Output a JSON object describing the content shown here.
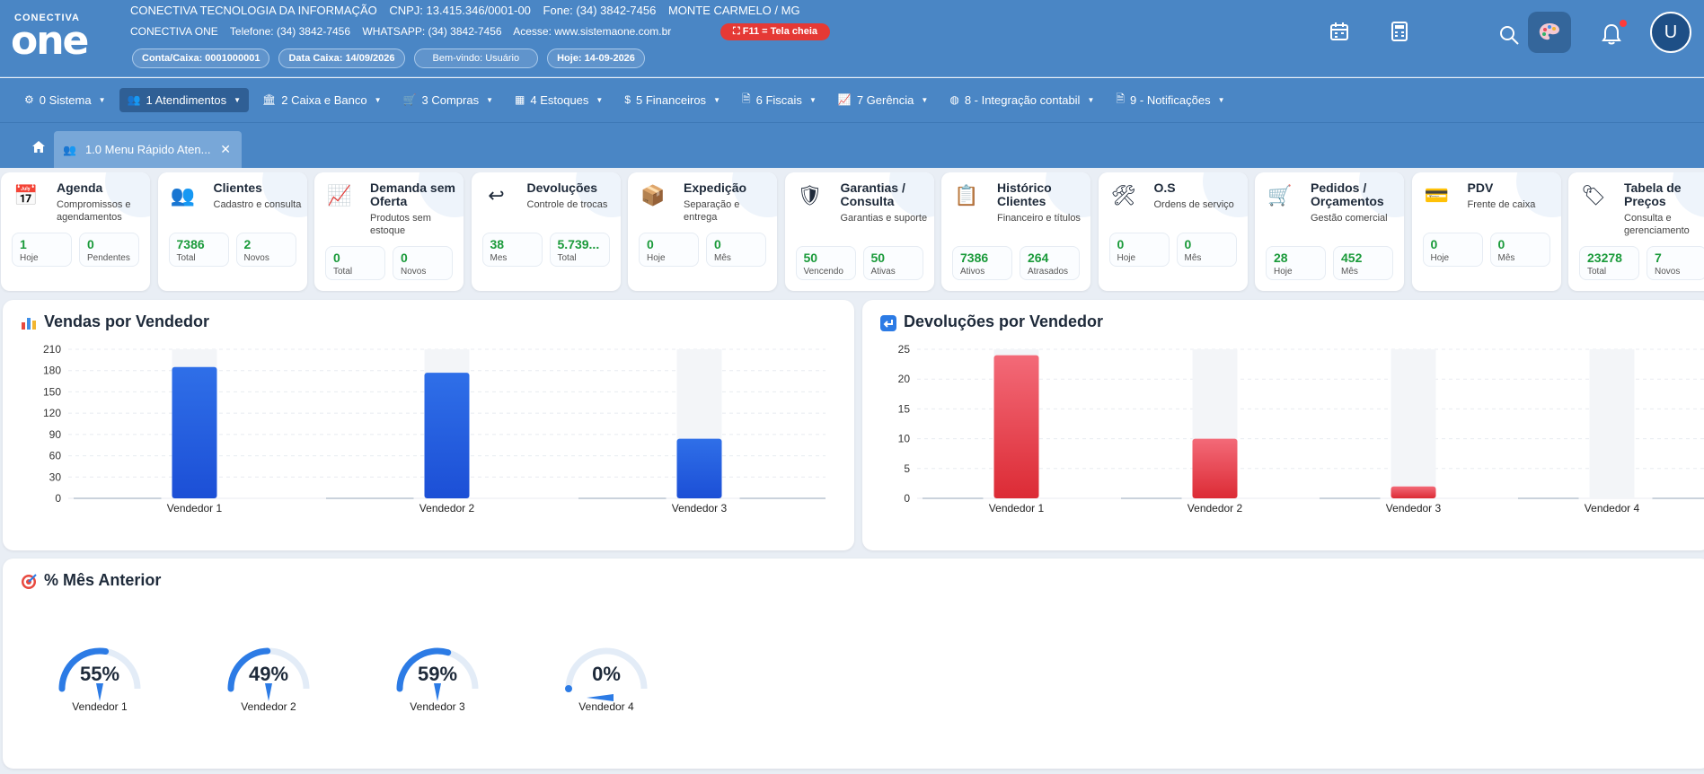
{
  "header": {
    "logo_top": "CONECTIVA",
    "logo_main": "one",
    "company": "CONECTIVA TECNOLOGIA DA INFORMAÇÃO",
    "cnpj": "CNPJ: 13.415.346/0001-00",
    "phone": "Fone: (34) 3842-7456",
    "city": "MONTE CARMELO / MG",
    "product": "CONECTIVA ONE",
    "telefone": "Telefone: (34) 3842-7456",
    "whatsapp": "WHATSAPP: (34) 3842-7456",
    "site": "Acesse: www.sistemaone.com.br",
    "pill_account": "Conta/Caixa: 0001000001",
    "pill_date": "Data Caixa: 14/09/2026",
    "pill_welcome": "Bem-vindo: Usuário",
    "pill_today": "Hoje: 14-09-2026",
    "fullscreen": "⛶ F11 = Tela cheia",
    "avatar_initial": "U",
    "icons": [
      "calendar-icon",
      "calculator-icon",
      "search-icon",
      "palette-icon",
      "bell-icon"
    ]
  },
  "menu": [
    {
      "label": "0 Sistema",
      "icon": "gear-icon",
      "glyph": "⚙"
    },
    {
      "label": "1 Atendimentos",
      "icon": "users-icon",
      "glyph": "👥"
    },
    {
      "label": "2 Caixa e Banco",
      "icon": "bank-icon",
      "glyph": "🏛"
    },
    {
      "label": "3 Compras",
      "icon": "cart-icon",
      "glyph": "🛒"
    },
    {
      "label": "4 Estoques",
      "icon": "table-icon",
      "glyph": "▦"
    },
    {
      "label": "5 Financeiros",
      "icon": "dollar-icon",
      "glyph": "$"
    },
    {
      "label": "6 Fiscais",
      "icon": "file-icon",
      "glyph": "🗎"
    },
    {
      "label": "7 Gerência",
      "icon": "chart-line-icon",
      "glyph": "📈"
    },
    {
      "label": "8 - Integração contabil",
      "icon": "globe-icon",
      "glyph": "◍"
    },
    {
      "label": "9 - Notificações",
      "icon": "file-icon",
      "glyph": "🗎"
    }
  ],
  "tab": {
    "label": "1.0 Menu Rápido Aten...",
    "close": "✕"
  },
  "cards": [
    {
      "title": "Agenda",
      "sub": "Compromissos e agendamentos",
      "icon": "calendar-icon",
      "glyph": "📅",
      "stats": [
        {
          "v": "1",
          "l": "Hoje"
        },
        {
          "v": "0",
          "l": "Pendentes"
        }
      ]
    },
    {
      "title": "Clientes",
      "sub": "Cadastro e consulta",
      "icon": "users-icon",
      "glyph": "👥",
      "stats": [
        {
          "v": "7386",
          "l": "Total"
        },
        {
          "v": "2",
          "l": "Novos"
        }
      ]
    },
    {
      "title": "Demanda sem Oferta",
      "sub": "Produtos sem estoque",
      "icon": "trend-icon",
      "glyph": "📈",
      "stats": [
        {
          "v": "0",
          "l": "Total"
        },
        {
          "v": "0",
          "l": "Novos"
        }
      ]
    },
    {
      "title": "Devoluções",
      "sub": "Controle de trocas",
      "icon": "return-icon",
      "glyph": "↩",
      "stats": [
        {
          "v": "38",
          "l": "Mes"
        },
        {
          "v": "5.739...",
          "l": "Total"
        }
      ]
    },
    {
      "title": "Expedição",
      "sub": "Separação e entrega",
      "icon": "box-icon",
      "glyph": "📦",
      "stats": [
        {
          "v": "0",
          "l": "Hoje"
        },
        {
          "v": "0",
          "l": "Mês"
        }
      ]
    },
    {
      "title": "Garantias / Consulta",
      "sub": "Garantias e suporte",
      "icon": "shield-icon",
      "glyph": "🛡",
      "stats": [
        {
          "v": "50",
          "l": "Vencendo"
        },
        {
          "v": "50",
          "l": "Ativas"
        }
      ]
    },
    {
      "title": "Histórico Clientes",
      "sub": "Financeiro e títulos",
      "icon": "clipboard-icon",
      "glyph": "📋",
      "stats": [
        {
          "v": "7386",
          "l": "Ativos"
        },
        {
          "v": "264",
          "l": "Atrasados"
        }
      ]
    },
    {
      "title": "O.S",
      "sub": "Ordens de serviço",
      "icon": "tools-icon",
      "glyph": "🛠",
      "stats": [
        {
          "v": "0",
          "l": "Hoje"
        },
        {
          "v": "0",
          "l": "Mês"
        }
      ]
    },
    {
      "title": "Pedidos / Orçamentos",
      "sub": "Gestão comercial",
      "icon": "cart-icon",
      "glyph": "🛒",
      "stats": [
        {
          "v": "28",
          "l": "Hoje"
        },
        {
          "v": "452",
          "l": "Mês"
        }
      ]
    },
    {
      "title": "PDV",
      "sub": "Frente de caixa",
      "icon": "card-icon",
      "glyph": "💳",
      "stats": [
        {
          "v": "0",
          "l": "Hoje"
        },
        {
          "v": "0",
          "l": "Mês"
        }
      ]
    },
    {
      "title": "Tabela de Preços",
      "sub": "Consulta e gerenciamento",
      "icon": "tag-icon",
      "glyph": "🏷",
      "stats": [
        {
          "v": "23278",
          "l": "Total"
        },
        {
          "v": "7",
          "l": "Novos"
        }
      ]
    }
  ],
  "sales_panel": {
    "title": "Vendas por Vendedor",
    "icon": "bar-chart-icon"
  },
  "returns_panel": {
    "title": "Devoluções por Vendedor",
    "icon": "return-icon"
  },
  "gauges_panel": {
    "title": "% Mês Anterior",
    "icon": "target-icon"
  },
  "chart_data": [
    {
      "type": "bar",
      "title": "Vendas por Vendedor",
      "categories": [
        "Vendedor 1",
        "Vendedor 2",
        "Vendedor 3"
      ],
      "values": [
        185,
        177,
        84
      ],
      "yticks": [
        0,
        30,
        60,
        90,
        120,
        150,
        180,
        210
      ],
      "ylim": [
        0,
        210
      ],
      "grid": true,
      "colors": {
        "bar_top": "#2f6fe8",
        "bar_bottom": "#1c4fd6"
      }
    },
    {
      "type": "bar",
      "title": "Devoluções por Vendedor",
      "categories": [
        "Vendedor 1",
        "Vendedor 2",
        "Vendedor 3",
        "Vendedor 4"
      ],
      "values": [
        24,
        10,
        2,
        0
      ],
      "yticks": [
        0,
        5,
        10,
        15,
        20,
        25
      ],
      "ylim": [
        0,
        25
      ],
      "grid": true,
      "colors": {
        "bar_top": "#f36a78",
        "bar_bottom": "#dc2b35"
      }
    },
    {
      "type": "gauge",
      "title": "% Mês Anterior",
      "categories": [
        "Vendedor 1",
        "Vendedor 2",
        "Vendedor 3",
        "Vendedor 4"
      ],
      "values": [
        55,
        49,
        59,
        0
      ],
      "labels": [
        "55%",
        "49%",
        "59%",
        "0%"
      ],
      "range": [
        0,
        100
      ],
      "colors": {
        "fill": "#2c7be5",
        "track": "#e3ecf7"
      }
    }
  ]
}
